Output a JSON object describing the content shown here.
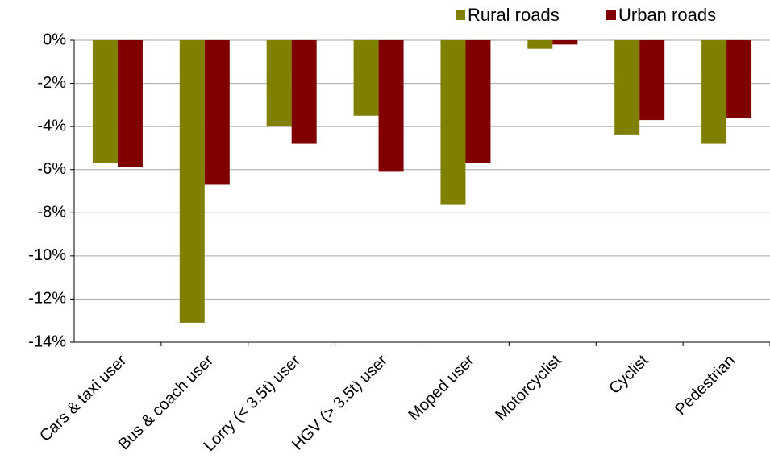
{
  "chart_data": {
    "type": "bar",
    "categories": [
      "Cars & taxi user",
      "Bus & coach user",
      "Lorry (< 3.5t) user",
      "HGV (> 3.5t) user",
      "Moped user",
      "Motorcyclist",
      "Cyclist",
      "Pedestrian"
    ],
    "series": [
      {
        "name": "Rural roads",
        "color": "#808000",
        "values": [
          -5.7,
          -13.1,
          -4.0,
          -3.5,
          -7.6,
          -0.4,
          -4.4,
          -4.8
        ]
      },
      {
        "name": "Urban roads",
        "color": "#800000",
        "values": [
          -5.9,
          -6.7,
          -4.8,
          -6.1,
          -5.7,
          -0.2,
          -3.7,
          -3.6
        ]
      }
    ],
    "ylim": [
      -14,
      0
    ],
    "yticks": [
      {
        "value": 0,
        "label": "0%"
      },
      {
        "value": -2,
        "label": "-2%"
      },
      {
        "value": -4,
        "label": "-4%"
      },
      {
        "value": -6,
        "label": "-6%"
      },
      {
        "value": -8,
        "label": "-8%"
      },
      {
        "value": -10,
        "label": "-10%"
      },
      {
        "value": -12,
        "label": "-12%"
      },
      {
        "value": -14,
        "label": "-14%"
      }
    ],
    "grid": true,
    "legend": "top-right"
  }
}
